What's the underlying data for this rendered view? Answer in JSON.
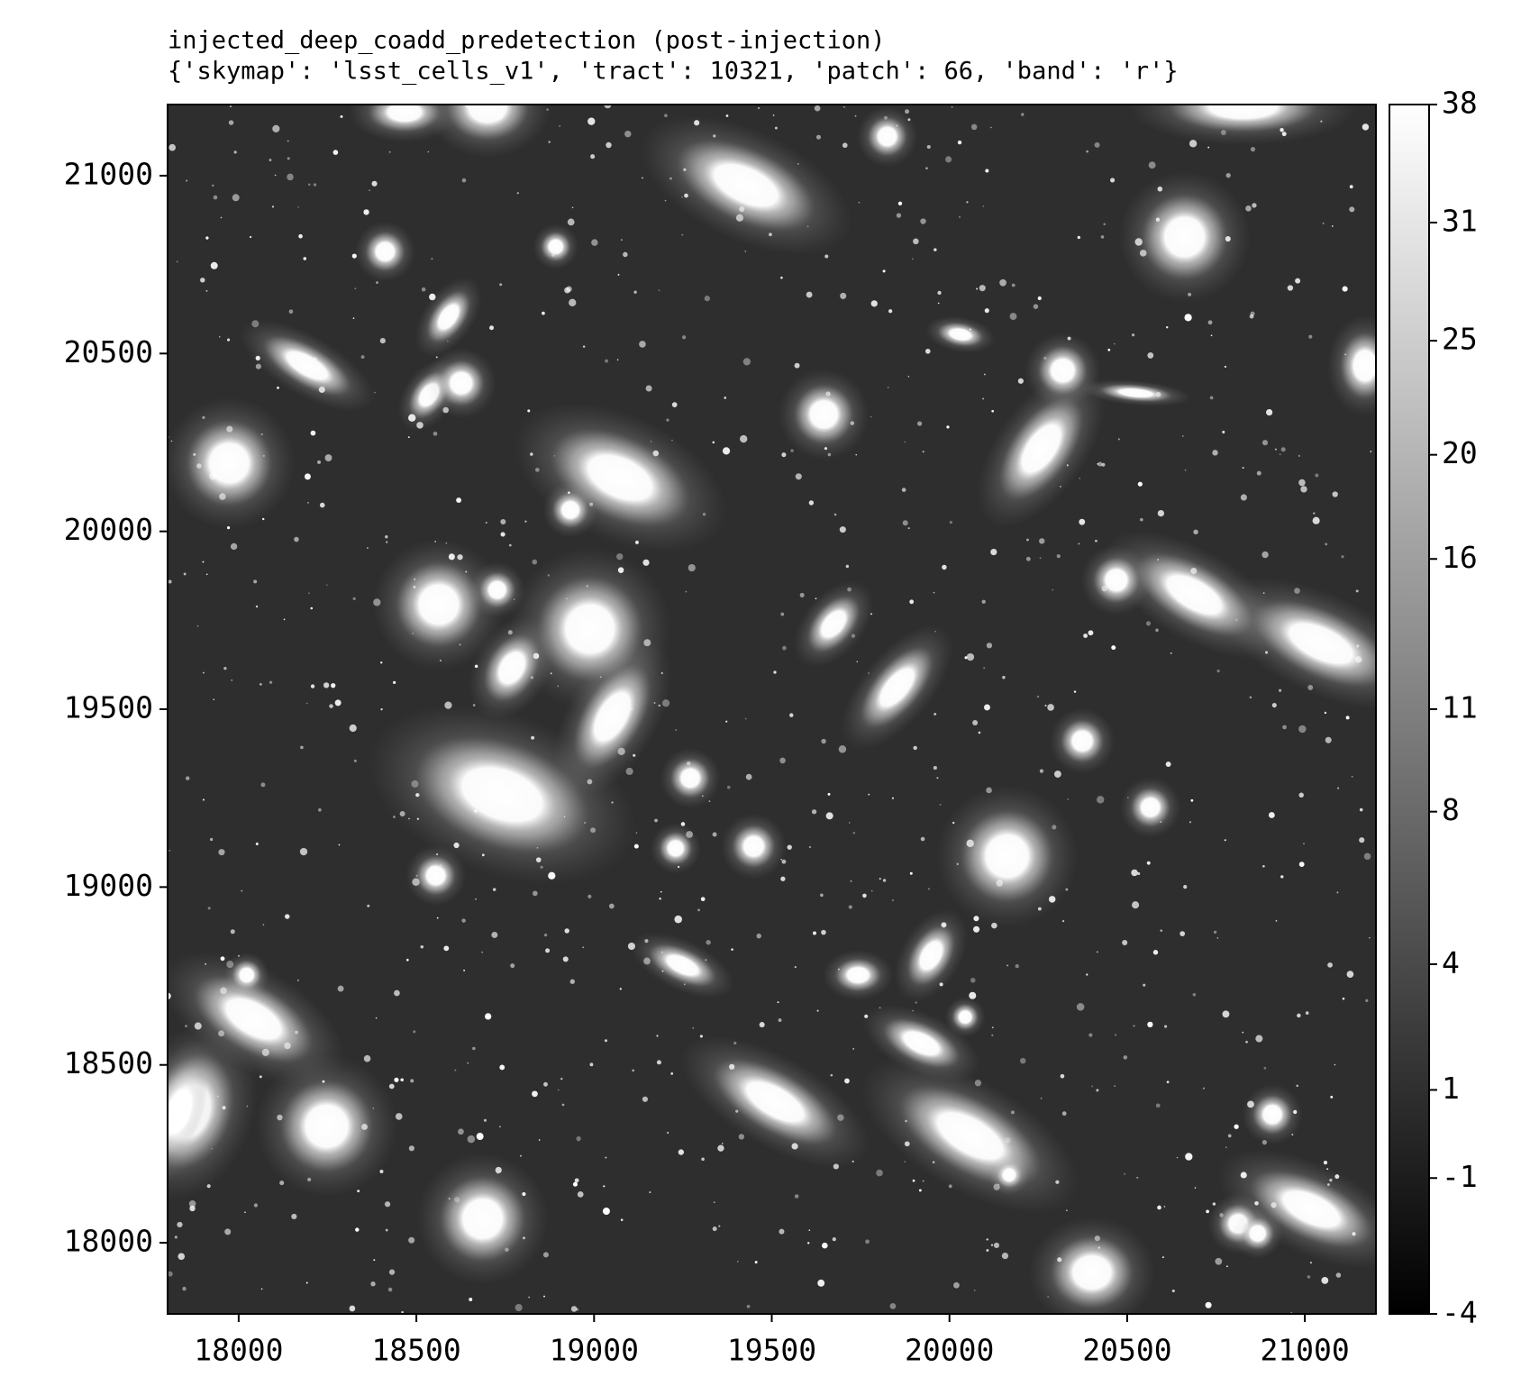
{
  "chart_data": {
    "type": "image",
    "title": "injected_deep_coadd_predetection (post-injection)",
    "subtitle": "{'skymap': 'lsst_cells_v1', 'tract': 10321, 'patch': 66, 'band': 'r'}",
    "xlim": [
      17800,
      21200
    ],
    "xticks": [
      18000,
      18500,
      19000,
      19500,
      20000,
      20500,
      21000
    ],
    "ylim": [
      17800,
      21200
    ],
    "yticks": [
      18000,
      18500,
      19000,
      19500,
      20000,
      20500,
      21000
    ],
    "colorbar": {
      "clim": [
        -4,
        38
      ],
      "stretch": "asinh",
      "cmap": "gray",
      "ticks": [
        -4,
        -1,
        1,
        4,
        8,
        11,
        16,
        20,
        25,
        31,
        38
      ]
    }
  }
}
